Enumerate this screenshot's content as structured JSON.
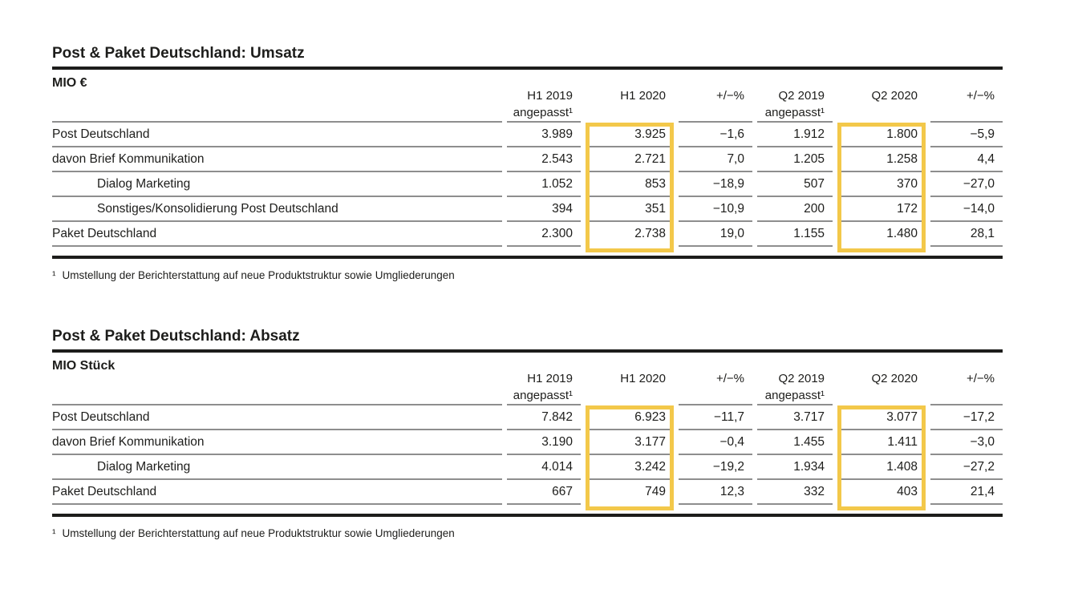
{
  "colors": {
    "ink": "#1d1d1b",
    "separator": "#8e8e8e",
    "highlight": "#f3c84a"
  },
  "tables": [
    {
      "title": "Post & Paket Deutschland: Umsatz",
      "unit": "MIO €",
      "columns": [
        {
          "line1": "H1 2019",
          "line2": "angepasst¹"
        },
        {
          "line1": "H1 2020",
          "line2": ""
        },
        {
          "line1": "+/−%",
          "line2": ""
        },
        {
          "line1": "Q2 2019",
          "line2": "angepasst¹"
        },
        {
          "line1": "Q2 2020",
          "line2": ""
        },
        {
          "line1": "+/−%",
          "line2": ""
        }
      ],
      "highlighted_columns": [
        "H1 2020",
        "Q2 2020"
      ],
      "rows": [
        {
          "label": "Post Deutschland",
          "values": [
            "3.989",
            "3.925",
            "−1,6",
            "1.912",
            "1.800",
            "−5,9"
          ]
        },
        {
          "label": "davon Brief Kommunikation",
          "values": [
            "2.543",
            "2.721",
            "7,0",
            "1.205",
            "1.258",
            "4,4"
          ]
        },
        {
          "label": "Dialog Marketing",
          "values": [
            "1.052",
            "853",
            "−18,9",
            "507",
            "370",
            "−27,0"
          ]
        },
        {
          "label": "Sonstiges/Konsolidierung Post Deutschland",
          "values": [
            "394",
            "351",
            "−10,9",
            "200",
            "172",
            "−14,0"
          ]
        },
        {
          "label": "Paket Deutschland",
          "values": [
            "2.300",
            "2.738",
            "19,0",
            "1.155",
            "1.480",
            "28,1"
          ]
        }
      ],
      "footnote": {
        "marker": "¹",
        "text": "Umstellung der Berichterstattung auf neue Produktstruktur sowie Umgliederungen"
      }
    },
    {
      "title": "Post & Paket Deutschland: Absatz",
      "unit": "MIO Stück",
      "columns": [
        {
          "line1": "H1 2019",
          "line2": "angepasst¹"
        },
        {
          "line1": "H1 2020",
          "line2": ""
        },
        {
          "line1": "+/−%",
          "line2": ""
        },
        {
          "line1": "Q2 2019",
          "line2": "angepasst¹"
        },
        {
          "line1": "Q2 2020",
          "line2": ""
        },
        {
          "line1": "+/−%",
          "line2": ""
        }
      ],
      "highlighted_columns": [
        "H1 2020",
        "Q2 2020"
      ],
      "rows": [
        {
          "label": "Post Deutschland",
          "values": [
            "7.842",
            "6.923",
            "−11,7",
            "3.717",
            "3.077",
            "−17,2"
          ]
        },
        {
          "label": "davon Brief Kommunikation",
          "values": [
            "3.190",
            "3.177",
            "−0,4",
            "1.455",
            "1.411",
            "−3,0"
          ]
        },
        {
          "label": "Dialog Marketing",
          "values": [
            "4.014",
            "3.242",
            "−19,2",
            "1.934",
            "1.408",
            "−27,2"
          ]
        },
        {
          "label": "Paket Deutschland",
          "values": [
            "667",
            "749",
            "12,3",
            "332",
            "403",
            "21,4"
          ]
        }
      ],
      "footnote": {
        "marker": "¹",
        "text": "Umstellung der Berichterstattung auf neue Produktstruktur sowie Umgliederungen"
      }
    }
  ]
}
